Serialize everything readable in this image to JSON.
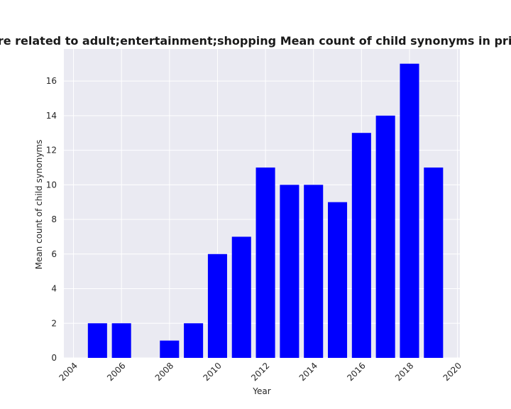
{
  "chart_data": {
    "type": "bar",
    "title": "Categories are related to adult;entertainment;shopping Mean count of child synonyms in privacy policies",
    "xlabel": "Year",
    "ylabel": "Mean count of child synonyms",
    "x": [
      2005,
      2006,
      2008,
      2009,
      2010,
      2011,
      2012,
      2013,
      2014,
      2015,
      2016,
      2017,
      2018,
      2019
    ],
    "values": [
      2,
      2,
      1,
      2,
      6,
      7,
      11,
      10,
      10,
      9,
      13,
      14,
      17,
      11
    ],
    "xlim": [
      2003.6,
      2020.1
    ],
    "ylim": [
      0,
      17.85
    ],
    "xticks": [
      2004,
      2006,
      2008,
      2010,
      2012,
      2014,
      2016,
      2018,
      2020
    ],
    "yticks": [
      0,
      2,
      4,
      6,
      8,
      10,
      12,
      14,
      16
    ],
    "bar_width": 0.8,
    "grid": true,
    "colors": {
      "bar": "#0000ff",
      "plot_background": "#eaeaf2",
      "grid": "#ffffff"
    }
  }
}
